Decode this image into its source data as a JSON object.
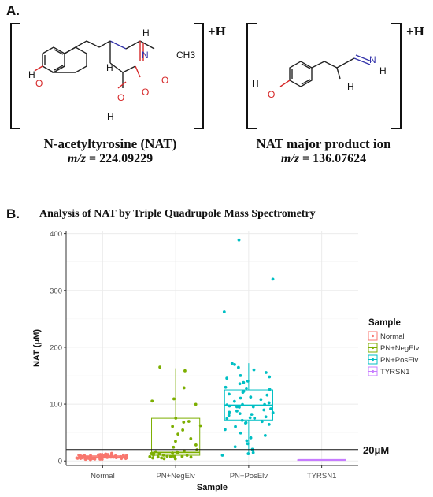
{
  "panelA": {
    "label": "A.",
    "plus_h_1": "+H",
    "plus_h_2": "+H",
    "molecule1": {
      "name": "N-acetyltyrosine (NAT)",
      "mz_label": "m/z",
      "mz_value": "= 224.09229"
    },
    "molecule2": {
      "name": "NAT major product ion",
      "mz_label": "m/z",
      "mz_value": "= 136.07624"
    },
    "atoms1": {
      "H_amine": "H",
      "N": "N",
      "CH3": "CH3",
      "O_amide": "O",
      "H_alpha": "H",
      "HO_left": "H",
      "O_phenol": "O",
      "O_carboxyl": "O",
      "O_hydroxyl": "O",
      "H_carboxyl": "H"
    },
    "atoms2": {
      "N": "N",
      "H_n": "H",
      "H_c": "H",
      "H_phenol": "H",
      "O_phenol": "O"
    }
  },
  "panelB": {
    "label": "B.",
    "title": "Analysis of NAT by Triple Quadrupole Mass Spectrometry"
  },
  "chart_data": {
    "type": "box",
    "title": "Analysis of NAT by Triple Quadrupole Mass Spectrometry",
    "xlabel": "Sample",
    "ylabel": "NAT (μM)",
    "ylim": [
      -8,
      405
    ],
    "yticks": [
      0,
      100,
      200,
      300,
      400
    ],
    "categories": [
      "Normal",
      "PN+NegElv",
      "PN+PosElv",
      "TYRSN1"
    ],
    "colors": {
      "Normal": "#f8766d",
      "PN+NegElv": "#7cae00",
      "PN+PosElv": "#00bfc4",
      "TYRSN1": "#c77cff"
    },
    "reference_line": {
      "value": 20,
      "label": "20μM"
    },
    "grid": true,
    "legend": {
      "title": "Sample",
      "position": "right",
      "entries": [
        "Normal",
        "PN+NegElv",
        "PN+PosElv",
        "TYRSN1"
      ]
    },
    "series": [
      {
        "name": "Normal",
        "box": {
          "min": 2,
          "q1": 5,
          "median": 7,
          "q3": 9,
          "max": 14
        },
        "points": [
          3,
          5,
          7,
          9,
          11,
          4,
          6,
          8,
          10,
          12,
          2,
          5,
          7,
          9,
          11,
          13,
          4,
          6,
          8,
          10,
          3,
          5,
          7,
          9,
          11,
          6,
          8,
          4,
          10,
          12,
          5,
          7,
          9,
          3,
          6,
          8,
          10,
          5,
          7,
          9,
          11,
          4,
          6,
          8,
          3,
          5,
          7,
          9,
          12,
          6,
          8,
          10,
          4,
          7,
          9,
          5,
          6,
          8,
          11,
          7
        ]
      },
      {
        "name": "PN+NegElv",
        "box": {
          "min": 3,
          "q1": 10,
          "median": 15,
          "q3": 75,
          "max": 163
        },
        "points": [
          3,
          4,
          5,
          5,
          6,
          6,
          7,
          7,
          8,
          8,
          9,
          9,
          10,
          10,
          11,
          12,
          12,
          13,
          14,
          15,
          16,
          17,
          18,
          20,
          25,
          28,
          35,
          40,
          48,
          55,
          60,
          62,
          68,
          70,
          75,
          100,
          105,
          110,
          128,
          158,
          165
        ]
      },
      {
        "name": "PN+PosElv",
        "box": {
          "min": 10,
          "q1": 72,
          "median": 98,
          "q3": 125,
          "max": 172
        },
        "points": [
          388,
          320,
          262,
          172,
          170,
          165,
          160,
          155,
          150,
          148,
          145,
          140,
          138,
          135,
          130,
          128,
          125,
          122,
          120,
          118,
          115,
          112,
          110,
          108,
          105,
          103,
          100,
          99,
          98,
          97,
          96,
          95,
          94,
          92,
          90,
          88,
          86,
          85,
          83,
          82,
          80,
          78,
          76,
          75,
          74,
          72,
          70,
          68,
          66,
          64,
          60,
          55,
          50,
          45,
          40,
          35,
          30,
          25,
          20,
          15,
          12,
          10
        ]
      },
      {
        "name": "TYRSN1",
        "box": {
          "min": 2,
          "q1": 2,
          "median": 2,
          "q3": 2,
          "max": 2
        },
        "points": []
      }
    ]
  }
}
